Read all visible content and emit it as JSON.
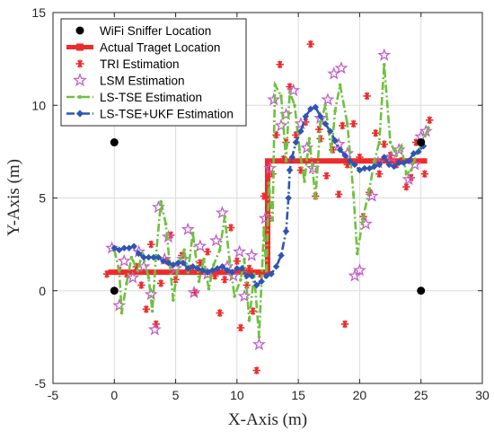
{
  "chart_data": {
    "type": "line",
    "title": "",
    "xlabel": "X-Axis (m)",
    "ylabel": "Y-Axis (m)",
    "xlim": [
      -5,
      30
    ],
    "ylim": [
      -5,
      15
    ],
    "xticks": [
      -5,
      0,
      5,
      10,
      15,
      20,
      25,
      30
    ],
    "yticks": [
      -5,
      0,
      5,
      10,
      15
    ],
    "grid": true,
    "legend_position": "top-left",
    "series": [
      {
        "name": "WiFi Sniffer Location",
        "style": "dot",
        "color": "#000000",
        "points": [
          [
            0,
            8
          ],
          [
            0,
            0
          ],
          [
            25,
            8
          ],
          [
            25,
            0
          ]
        ]
      },
      {
        "name": "Actual Traget Location",
        "style": "thick-line",
        "color": "#ee2b2b",
        "points": [
          [
            -0.5,
            1
          ],
          [
            12.5,
            1
          ],
          [
            12.5,
            7
          ],
          [
            25.5,
            7
          ]
        ]
      },
      {
        "name": "TRI Estimation",
        "style": "asterisk",
        "color": "#ee2b2b",
        "points": [
          [
            -0.6,
            0.9
          ],
          [
            0.4,
            1.1
          ],
          [
            1.0,
            0.9
          ],
          [
            1.8,
            1.3
          ],
          [
            2.2,
            0.3
          ],
          [
            2.6,
            -1.0
          ],
          [
            3.0,
            2.5
          ],
          [
            3.4,
            -1.8
          ],
          [
            3.8,
            0.4
          ],
          [
            4.3,
            1.6
          ],
          [
            4.6,
            3.0
          ],
          [
            5.0,
            0.6
          ],
          [
            5.5,
            1.9
          ],
          [
            6.2,
            1.2
          ],
          [
            6.6,
            -0.1
          ],
          [
            7.0,
            1.5
          ],
          [
            7.6,
            2.1
          ],
          [
            8.2,
            0.8
          ],
          [
            8.6,
            -1.2
          ],
          [
            9.0,
            0.6
          ],
          [
            9.5,
            3.4
          ],
          [
            10.0,
            1.6
          ],
          [
            10.3,
            -2.0
          ],
          [
            10.8,
            0.3
          ],
          [
            11.0,
            1.2
          ],
          [
            11.3,
            -1.1
          ],
          [
            11.6,
            -4.3
          ],
          [
            11.9,
            0.9
          ],
          [
            12.2,
            5.1
          ],
          [
            12.6,
            3.9
          ],
          [
            12.9,
            6.3
          ],
          [
            13.2,
            8.4
          ],
          [
            13.5,
            12.2
          ],
          [
            13.8,
            7.1
          ],
          [
            14.3,
            11.0
          ],
          [
            14.8,
            8.4
          ],
          [
            15.2,
            6.5
          ],
          [
            15.6,
            9.1
          ],
          [
            16.0,
            13.3
          ],
          [
            16.4,
            5.1
          ],
          [
            16.8,
            8.2
          ],
          [
            17.3,
            6.2
          ],
          [
            17.8,
            7.6
          ],
          [
            18.3,
            5.2
          ],
          [
            18.6,
            8.9
          ],
          [
            19.0,
            6.8
          ],
          [
            19.5,
            9.0
          ],
          [
            20.0,
            7.2
          ],
          [
            20.3,
            4.0
          ],
          [
            20.8,
            5.3
          ],
          [
            21.3,
            8.5
          ],
          [
            21.6,
            6.3
          ],
          [
            22.0,
            7.9
          ],
          [
            22.5,
            7.3
          ],
          [
            23.0,
            6.8
          ],
          [
            23.4,
            7.0
          ],
          [
            23.8,
            5.6
          ],
          [
            24.2,
            6.1
          ],
          [
            24.6,
            8.0
          ],
          [
            25.3,
            6.3
          ],
          [
            25.7,
            9.2
          ],
          [
            18.8,
            -1.8
          ],
          [
            16.7,
            8.7
          ],
          [
            20.6,
            10.5
          ],
          [
            14.0,
            8.0
          ]
        ]
      },
      {
        "name": "LSM Estimation",
        "style": "star",
        "color": "#c35fc8",
        "points": [
          [
            -0.2,
            2.3
          ],
          [
            0.4,
            -0.8
          ],
          [
            0.8,
            1.6
          ],
          [
            1.5,
            0.7
          ],
          [
            2.0,
            2.1
          ],
          [
            2.4,
            1.3
          ],
          [
            3.0,
            -0.2
          ],
          [
            3.3,
            -2.1
          ],
          [
            3.6,
            4.5
          ],
          [
            4.1,
            1.7
          ],
          [
            4.4,
            2.9
          ],
          [
            5.0,
            1.2
          ],
          [
            5.6,
            1.7
          ],
          [
            6.0,
            3.3
          ],
          [
            6.5,
            -0.1
          ],
          [
            7.0,
            2.4
          ],
          [
            7.6,
            0.9
          ],
          [
            8.3,
            2.7
          ],
          [
            8.8,
            4.2
          ],
          [
            9.2,
            1.3
          ],
          [
            9.7,
            0.8
          ],
          [
            10.2,
            2.1
          ],
          [
            10.6,
            -0.3
          ],
          [
            11.2,
            1.9
          ],
          [
            11.8,
            -2.9
          ],
          [
            12.3,
            3.9
          ],
          [
            12.7,
            6.6
          ],
          [
            13.0,
            10.3
          ],
          [
            13.6,
            8.9
          ],
          [
            14.0,
            9.5
          ],
          [
            14.6,
            10.8
          ],
          [
            15.2,
            9.0
          ],
          [
            15.7,
            7.7
          ],
          [
            16.2,
            6.6
          ],
          [
            16.8,
            9.3
          ],
          [
            17.4,
            10.3
          ],
          [
            17.9,
            11.7
          ],
          [
            18.3,
            7.9
          ],
          [
            18.5,
            12.0
          ],
          [
            19.0,
            7.4
          ],
          [
            19.6,
            0.8
          ],
          [
            20.0,
            1.1
          ],
          [
            20.5,
            3.6
          ],
          [
            21.0,
            5.1
          ],
          [
            21.5,
            6.9
          ],
          [
            22.0,
            12.7
          ],
          [
            22.6,
            7.2
          ],
          [
            23.2,
            7.6
          ],
          [
            24.0,
            6.0
          ],
          [
            24.5,
            6.8
          ],
          [
            25.0,
            8.3
          ],
          [
            25.4,
            8.6
          ]
        ]
      },
      {
        "name": "LS-TSE Estimation",
        "style": "dash-dot-small-markers",
        "color": "#6ec13f",
        "points": [
          [
            0.0,
            2.2
          ],
          [
            0.4,
            1.1
          ],
          [
            0.6,
            -1.2
          ],
          [
            1.0,
            0.4
          ],
          [
            1.4,
            1.8
          ],
          [
            1.9,
            1.1
          ],
          [
            2.3,
            2.0
          ],
          [
            2.8,
            0.7
          ],
          [
            3.1,
            -1.1
          ],
          [
            3.4,
            1.9
          ],
          [
            3.8,
            4.8
          ],
          [
            4.2,
            3.6
          ],
          [
            4.8,
            -0.5
          ],
          [
            5.2,
            1.4
          ],
          [
            5.7,
            2.2
          ],
          [
            6.0,
            1.0
          ],
          [
            6.4,
            3.1
          ],
          [
            6.9,
            0.5
          ],
          [
            7.3,
            1.7
          ],
          [
            7.7,
            0.1
          ],
          [
            8.1,
            1.4
          ],
          [
            8.6,
            2.2
          ],
          [
            9.0,
            4.0
          ],
          [
            9.4,
            1.6
          ],
          [
            9.8,
            -0.3
          ],
          [
            10.3,
            0.6
          ],
          [
            10.6,
            1.7
          ],
          [
            11.0,
            -1.6
          ],
          [
            11.4,
            0.9
          ],
          [
            11.8,
            -2.5
          ],
          [
            12.2,
            3.4
          ],
          [
            12.4,
            0.8
          ],
          [
            12.6,
            5.8
          ],
          [
            12.9,
            3.8
          ],
          [
            13.1,
            11.1
          ],
          [
            13.6,
            10.5
          ],
          [
            14.0,
            7.0
          ],
          [
            14.3,
            10.7
          ],
          [
            14.7,
            10.0
          ],
          [
            15.1,
            7.6
          ],
          [
            15.5,
            5.9
          ],
          [
            15.9,
            8.2
          ],
          [
            16.4,
            5.0
          ],
          [
            16.8,
            9.0
          ],
          [
            17.2,
            10.0
          ],
          [
            17.7,
            7.5
          ],
          [
            18.0,
            9.7
          ],
          [
            18.4,
            11.1
          ],
          [
            19.0,
            9.0
          ],
          [
            19.5,
            5.2
          ],
          [
            19.8,
            2.0
          ],
          [
            20.3,
            4.0
          ],
          [
            20.8,
            5.5
          ],
          [
            21.2,
            7.0
          ],
          [
            21.6,
            8.0
          ],
          [
            22.0,
            12.2
          ],
          [
            22.5,
            8.0
          ],
          [
            23.0,
            7.3
          ],
          [
            23.4,
            7.8
          ],
          [
            23.8,
            6.3
          ],
          [
            24.2,
            6.5
          ],
          [
            24.7,
            7.5
          ],
          [
            25.1,
            7.9
          ],
          [
            25.6,
            8.8
          ]
        ]
      },
      {
        "name": "LS-TSE+UKF Estimation",
        "style": "dash-dot-diamond",
        "color": "#2f55b3",
        "points": [
          [
            0.0,
            2.3
          ],
          [
            0.4,
            2.2
          ],
          [
            0.8,
            2.3
          ],
          [
            1.2,
            2.3
          ],
          [
            1.6,
            2.4
          ],
          [
            2.0,
            2.0
          ],
          [
            2.4,
            1.8
          ],
          [
            2.8,
            1.8
          ],
          [
            3.2,
            1.8
          ],
          [
            3.6,
            1.8
          ],
          [
            4.0,
            1.6
          ],
          [
            4.4,
            1.5
          ],
          [
            4.8,
            1.4
          ],
          [
            5.2,
            1.5
          ],
          [
            5.6,
            1.5
          ],
          [
            6.0,
            1.2
          ],
          [
            6.4,
            1.3
          ],
          [
            6.8,
            1.2
          ],
          [
            7.2,
            1.1
          ],
          [
            7.6,
            1.0
          ],
          [
            8.0,
            1.1
          ],
          [
            8.4,
            1.2
          ],
          [
            8.8,
            1.3
          ],
          [
            9.2,
            1.1
          ],
          [
            9.6,
            1.0
          ],
          [
            10.0,
            1.2
          ],
          [
            10.4,
            1.2
          ],
          [
            10.8,
            0.8
          ],
          [
            11.2,
            0.8
          ],
          [
            11.6,
            0.3
          ],
          [
            12.0,
            0.5
          ],
          [
            12.4,
            0.8
          ],
          [
            12.8,
            0.9
          ],
          [
            13.2,
            1.3
          ],
          [
            13.6,
            1.9
          ],
          [
            14.0,
            3.2
          ],
          [
            14.2,
            5.0
          ],
          [
            14.3,
            6.5
          ],
          [
            14.5,
            7.2
          ],
          [
            14.8,
            8.0
          ],
          [
            15.2,
            8.6
          ],
          [
            15.6,
            9.4
          ],
          [
            16.0,
            9.8
          ],
          [
            16.4,
            9.9
          ],
          [
            16.8,
            9.4
          ],
          [
            17.2,
            9.0
          ],
          [
            17.6,
            8.6
          ],
          [
            18.0,
            8.1
          ],
          [
            18.4,
            7.6
          ],
          [
            18.8,
            7.3
          ],
          [
            19.2,
            7.0
          ],
          [
            19.6,
            6.8
          ],
          [
            20.0,
            6.5
          ],
          [
            20.4,
            6.6
          ],
          [
            20.8,
            6.6
          ],
          [
            21.2,
            6.7
          ],
          [
            21.6,
            6.8
          ],
          [
            22.0,
            7.2
          ],
          [
            22.4,
            6.8
          ],
          [
            22.8,
            6.7
          ],
          [
            23.2,
            6.9
          ],
          [
            23.6,
            6.9
          ],
          [
            24.0,
            7.0
          ],
          [
            24.4,
            7.4
          ],
          [
            24.8,
            7.5
          ],
          [
            25.2,
            7.8
          ]
        ]
      }
    ]
  }
}
